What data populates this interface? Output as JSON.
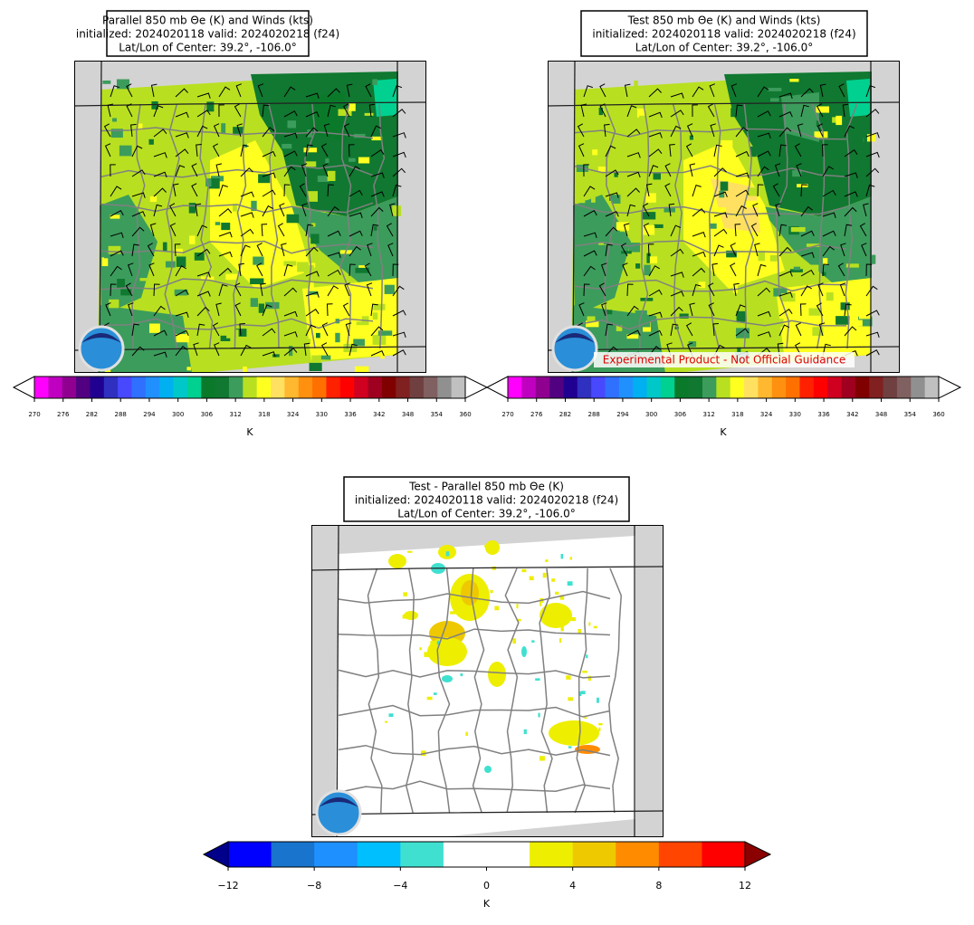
{
  "panels": [
    {
      "title": [
        "Parallel 850 mb Θe (K) and Winds (kts)",
        "initialized: 2024020118 valid: 2024020218 (f24)",
        "Lat/Lon of Center: 39.2°, -106.0°"
      ],
      "colorbar": {
        "label": "K",
        "range": [
          270,
          360
        ],
        "ticks": [
          270,
          276,
          282,
          288,
          294,
          300,
          306,
          312,
          318,
          324,
          330,
          336,
          342,
          348,
          354,
          360
        ],
        "colors": [
          "#ff00ff",
          "#c000c0",
          "#900090",
          "#500080",
          "#200090",
          "#3030c0",
          "#4848ff",
          "#3070ff",
          "#2090ff",
          "#00b0f0",
          "#00c8c8",
          "#00d090",
          "#0a7a2a",
          "#107830",
          "#3c9c5c",
          "#b8e020",
          "#ffff20",
          "#ffe060",
          "#ffb830",
          "#ff9010",
          "#ff7000",
          "#ff2000",
          "#ff0000",
          "#d00020",
          "#a00020",
          "#800000",
          "#802020",
          "#704040",
          "#806060",
          "#909090",
          "#c0c0c0"
        ],
        "extend_colors": [
          "#ffffff",
          "#ffffff"
        ]
      }
    },
    {
      "title": [
        "Test 850 mb Θe (K) and Winds (kts)",
        "initialized: 2024020118 valid: 2024020218 (f24)",
        "Lat/Lon of Center: 39.2°, -106.0°"
      ],
      "colorbar": {
        "label": "K",
        "range": [
          270,
          360
        ],
        "ticks": [
          270,
          276,
          282,
          288,
          294,
          300,
          306,
          312,
          318,
          324,
          330,
          336,
          342,
          348,
          354,
          360
        ],
        "colors": [
          "#ff00ff",
          "#c000c0",
          "#900090",
          "#500080",
          "#200090",
          "#3030c0",
          "#4848ff",
          "#3070ff",
          "#2090ff",
          "#00b0f0",
          "#00c8c8",
          "#00d090",
          "#0a7a2a",
          "#107830",
          "#3c9c5c",
          "#b8e020",
          "#ffff20",
          "#ffe060",
          "#ffb830",
          "#ff9010",
          "#ff7000",
          "#ff2000",
          "#ff0000",
          "#d00020",
          "#a00020",
          "#800000",
          "#802020",
          "#704040",
          "#806060",
          "#909090",
          "#c0c0c0"
        ],
        "extend_colors": [
          "#ffffff",
          "#ffffff"
        ]
      }
    },
    {
      "title": [
        "Test - Parallel 850 mb Θe (K)",
        "initialized: 2024020118 valid: 2024020218 (f24)",
        "Lat/Lon of Center: 39.2°, -106.0°"
      ],
      "colorbar": {
        "label": "K",
        "range": [
          -12,
          12
        ],
        "ticks": [
          {
            "value": -12,
            "label": "−12"
          },
          {
            "value": -8,
            "label": "−8"
          },
          {
            "value": -4,
            "label": "−4"
          },
          0,
          4,
          8,
          12
        ],
        "colors": [
          "#0000ff",
          "#1874cd",
          "#1e90ff",
          "#00bfff",
          "#40e0d0",
          "#ffffff",
          "#ffffff",
          "#eeee00",
          "#eec900",
          "#ff8c00",
          "#ff4500",
          "#ff0000"
        ],
        "extend_colors": [
          "#00008b",
          "#8b0000"
        ]
      }
    }
  ],
  "watermark": "Experimental Product - Not Official Guidance"
}
